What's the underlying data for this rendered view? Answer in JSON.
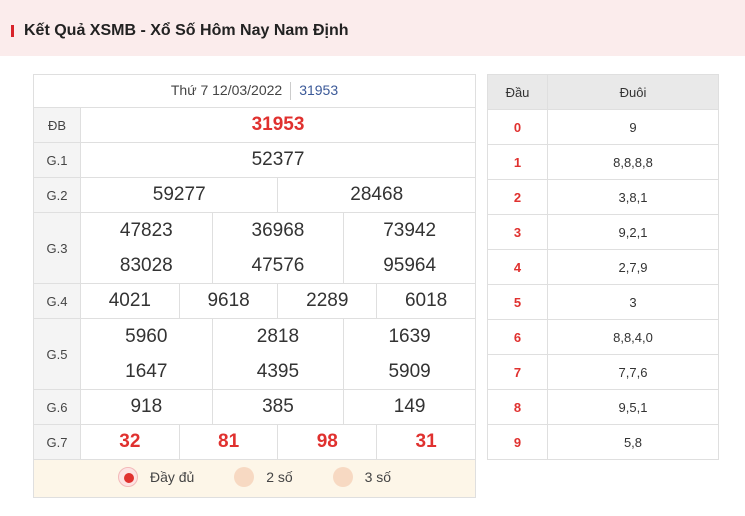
{
  "header": {
    "title": "Kết Quả XSMB - Xổ Số Hôm Nay Nam Định"
  },
  "results": {
    "date": "Thứ 7 12/03/2022",
    "code": "31953",
    "labels": {
      "db": "ĐB",
      "g1": "G.1",
      "g2": "G.2",
      "g3": "G.3",
      "g4": "G.4",
      "g5": "G.5",
      "g6": "G.6",
      "g7": "G.7"
    },
    "db": "31953",
    "g1": "52377",
    "g2": [
      "59277",
      "28468"
    ],
    "g3": [
      "47823",
      "36968",
      "73942",
      "83028",
      "47576",
      "95964"
    ],
    "g4": [
      "4021",
      "9618",
      "2289",
      "6018"
    ],
    "g5": [
      "5960",
      "2818",
      "1639",
      "1647",
      "4395",
      "5909"
    ],
    "g6": [
      "918",
      "385",
      "149"
    ],
    "g7": [
      "32",
      "81",
      "98",
      "31"
    ]
  },
  "options": {
    "full": "Đầy đủ",
    "two": "2 số",
    "three": "3 số",
    "selected": "full"
  },
  "loto": {
    "head_label": "Đầu",
    "tail_label": "Đuôi",
    "rows": [
      {
        "d": "0",
        "t": "9"
      },
      {
        "d": "1",
        "t": "8,8,8,8"
      },
      {
        "d": "2",
        "t": "3,8,1"
      },
      {
        "d": "3",
        "t": "9,2,1"
      },
      {
        "d": "4",
        "t": "2,7,9"
      },
      {
        "d": "5",
        "t": "3"
      },
      {
        "d": "6",
        "t": "8,8,4,0"
      },
      {
        "d": "7",
        "t": "7,7,6"
      },
      {
        "d": "8",
        "t": "9,5,1"
      },
      {
        "d": "9",
        "t": "5,8"
      }
    ]
  },
  "colors": {
    "accent": "#e0312f",
    "header_bg": "#fbecec",
    "code_link": "#3b5998"
  }
}
